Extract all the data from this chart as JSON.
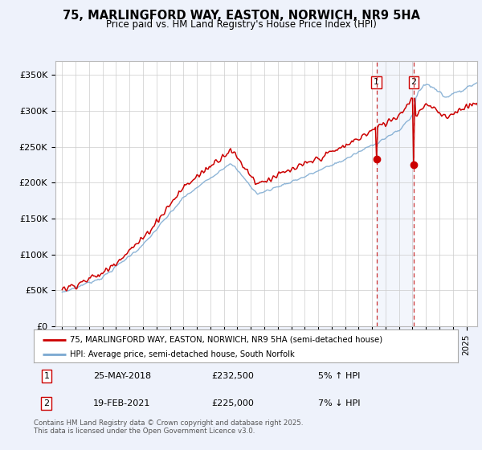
{
  "title": "75, MARLINGFORD WAY, EASTON, NORWICH, NR9 5HA",
  "subtitle": "Price paid vs. HM Land Registry's House Price Index (HPI)",
  "legend_line1": "75, MARLINGFORD WAY, EASTON, NORWICH, NR9 5HA (semi-detached house)",
  "legend_line2": "HPI: Average price, semi-detached house, South Norfolk",
  "footnote": "Contains HM Land Registry data © Crown copyright and database right 2025.\nThis data is licensed under the Open Government Licence v3.0.",
  "transaction1_date": "25-MAY-2018",
  "transaction1_price": "£232,500",
  "transaction1_pct": "5% ↑ HPI",
  "transaction2_date": "19-FEB-2021",
  "transaction2_price": "£225,000",
  "transaction2_pct": "7% ↓ HPI",
  "line1_color": "#cc0000",
  "line2_color": "#7aa8d0",
  "background_color": "#eef2fb",
  "plot_bg_color": "#ffffff",
  "ytick_labels": [
    "£0",
    "£50K",
    "£100K",
    "£150K",
    "£200K",
    "£250K",
    "£300K",
    "£350K"
  ],
  "ytick_values": [
    0,
    50000,
    100000,
    150000,
    200000,
    250000,
    300000,
    350000
  ],
  "ylim": [
    0,
    370000
  ],
  "xlim_start": 1994.5,
  "xlim_end": 2025.8
}
